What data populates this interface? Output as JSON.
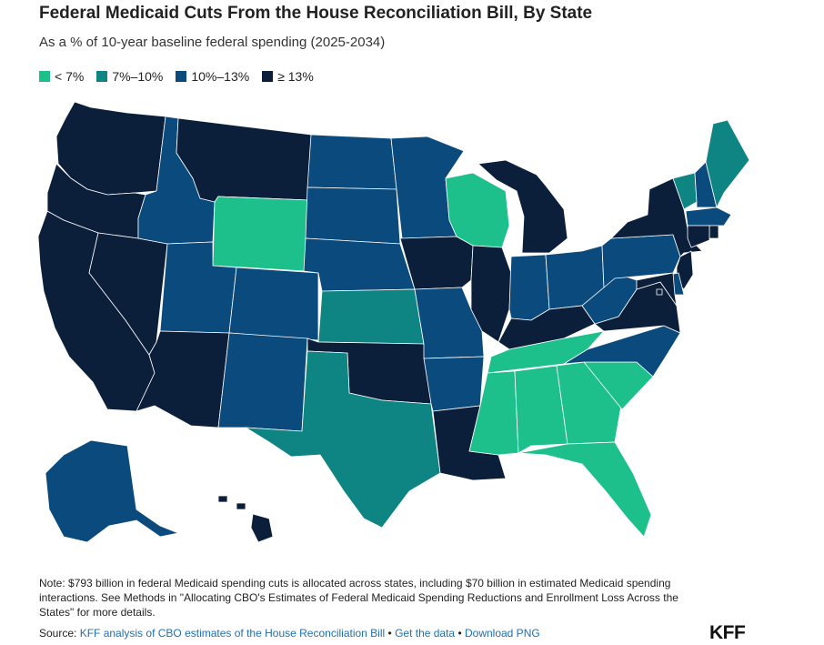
{
  "header": {
    "title": "Federal Medicaid Cuts From the House Reconciliation Bill, By State",
    "subtitle": "As a % of 10-year baseline federal spending (2025-2034)"
  },
  "legend": [
    {
      "label": "< 7%",
      "color": "#1dbf8a"
    },
    {
      "label": "7%–10%",
      "color": "#0f8583"
    },
    {
      "label": "10%–13%",
      "color": "#0b4a7c"
    },
    {
      "label": "≥ 13%",
      "color": "#0b1f3a"
    }
  ],
  "map": {
    "colors": {
      "lt7": "#1dbf8a",
      "b7_10": "#0f8583",
      "b10_13": "#0b4a7c",
      "ge13": "#0b1f3a"
    },
    "states": {
      "WA": "ge13",
      "OR": "ge13",
      "CA": "ge13",
      "NV": "ge13",
      "ID": "b10_13",
      "MT": "ge13",
      "WY": "lt7",
      "UT": "b10_13",
      "AZ": "ge13",
      "CO": "b10_13",
      "NM": "b10_13",
      "ND": "b10_13",
      "SD": "b10_13",
      "NE": "b10_13",
      "KS": "b7_10",
      "OK": "ge13",
      "TX": "b7_10",
      "MN": "b10_13",
      "IA": "ge13",
      "MO": "b10_13",
      "AR": "b10_13",
      "LA": "ge13",
      "WI": "lt7",
      "IL": "ge13",
      "MI": "ge13",
      "IN": "b10_13",
      "OH": "b10_13",
      "KY": "ge13",
      "TN": "lt7",
      "MS": "lt7",
      "AL": "lt7",
      "GA": "lt7",
      "FL": "lt7",
      "SC": "lt7",
      "NC": "b10_13",
      "VA": "ge13",
      "WV": "b10_13",
      "PA": "b10_13",
      "NY": "ge13",
      "VT": "b7_10",
      "NH": "b10_13",
      "ME": "b7_10",
      "MA": "b10_13",
      "RI": "ge13",
      "CT": "ge13",
      "NJ": "ge13",
      "DE": "b10_13",
      "MD": "ge13",
      "DC": "ge13",
      "AK": "b10_13",
      "HI": "ge13"
    }
  },
  "footer": {
    "note": "Note: $793 billion in federal Medicaid spending cuts is allocated across states, including $70 billion in estimated Medicaid spending interactions. See Methods in \"Allocating CBO's Estimates of Federal Medicaid Spending Reductions and Enrollment Loss Across the States\" for more details.",
    "source_prefix": "Source: ",
    "source_link": "KFF analysis of CBO estimates of the House Reconciliation Bill",
    "sep1": " • ",
    "data_link": "Get the data",
    "sep2": " • ",
    "png_link": "Download PNG",
    "logo": "KFF"
  }
}
